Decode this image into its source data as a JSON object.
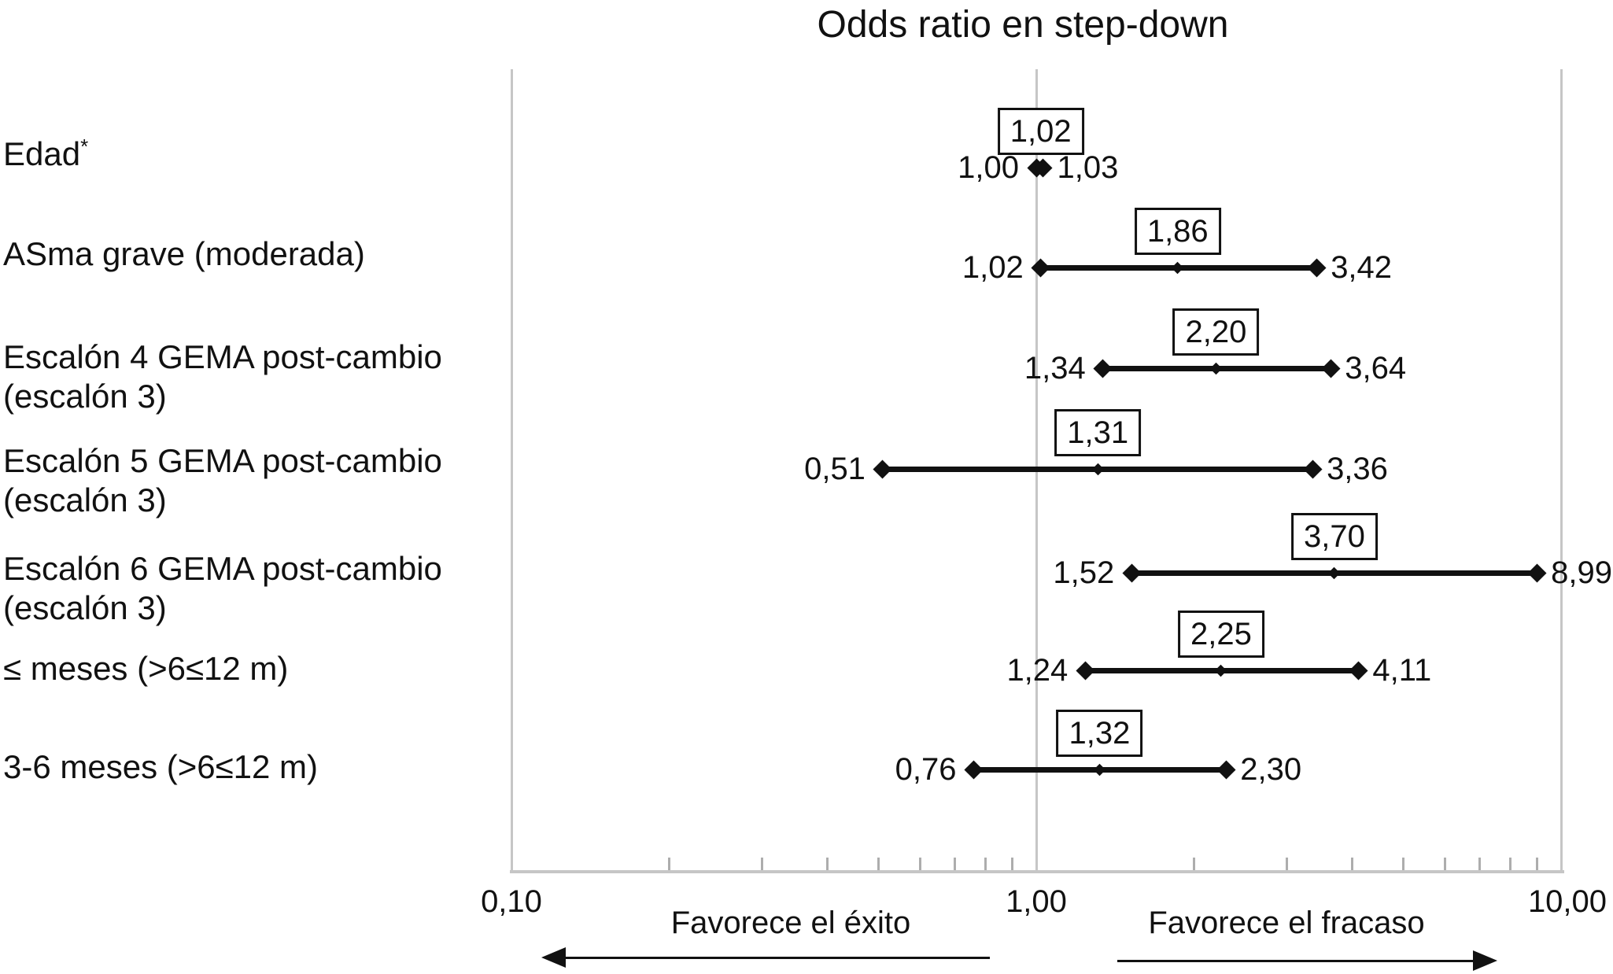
{
  "title": "Odds ratio en step-down",
  "chart_data": {
    "type": "scatter",
    "variant": "forest-plot-odds-ratio",
    "title": "Odds ratio en step-down",
    "x_axis": {
      "scale": "log10",
      "min": 0.1,
      "max": 10,
      "tick_values": [
        0.1,
        1,
        10
      ],
      "tick_labels": [
        "0,10",
        "1,00",
        "10,00"
      ],
      "minor_ticks": [
        0.2,
        0.3,
        0.4,
        0.5,
        0.6,
        0.7,
        0.8,
        0.9,
        2,
        3,
        4,
        5,
        6,
        7,
        8,
        9
      ],
      "reference_line": 1.0,
      "grid": false
    },
    "rows": [
      {
        "label": "Edad",
        "label_sup": "*",
        "or": 1.02,
        "ci_low": 1.0,
        "ci_high": 1.03,
        "or_label": "1,02",
        "low_label": "1,00",
        "high_label": "1,03"
      },
      {
        "label": "ASma grave (moderada)",
        "or": 1.86,
        "ci_low": 1.02,
        "ci_high": 3.42,
        "or_label": "1,86",
        "low_label": "1,02",
        "high_label": "3,42"
      },
      {
        "label": "Escalón 4 GEMA post-cambio\n(escalón 3)",
        "or": 2.2,
        "ci_low": 1.34,
        "ci_high": 3.64,
        "or_label": "2,20",
        "low_label": "1,34",
        "high_label": "3,64"
      },
      {
        "label": "Escalón 5 GEMA post-cambio\n(escalón 3)",
        "or": 1.31,
        "ci_low": 0.51,
        "ci_high": 3.36,
        "or_label": "1,31",
        "low_label": "0,51",
        "high_label": "3,36"
      },
      {
        "label": "Escalón 6 GEMA post-cambio\n(escalón 3)",
        "or": 3.7,
        "ci_low": 1.52,
        "ci_high": 8.99,
        "or_label": "3,70",
        "low_label": "1,52",
        "high_label": "8,99"
      },
      {
        "label": "≤ meses (>6≤12 m)",
        "or": 2.25,
        "ci_low": 1.24,
        "ci_high": 4.11,
        "or_label": "2,25",
        "low_label": "1,24",
        "high_label": "4,11"
      },
      {
        "label": "3-6 meses (>6≤12 m)",
        "or": 1.32,
        "ci_low": 0.76,
        "ci_high": 2.3,
        "or_label": "1,32",
        "low_label": "0,76",
        "high_label": "2,30"
      }
    ],
    "annotations": {
      "left": "Favorece el éxito",
      "right": "Favorece el fracaso"
    },
    "colors": {
      "marker": "#111111",
      "grid": "#c6c6c6"
    }
  }
}
